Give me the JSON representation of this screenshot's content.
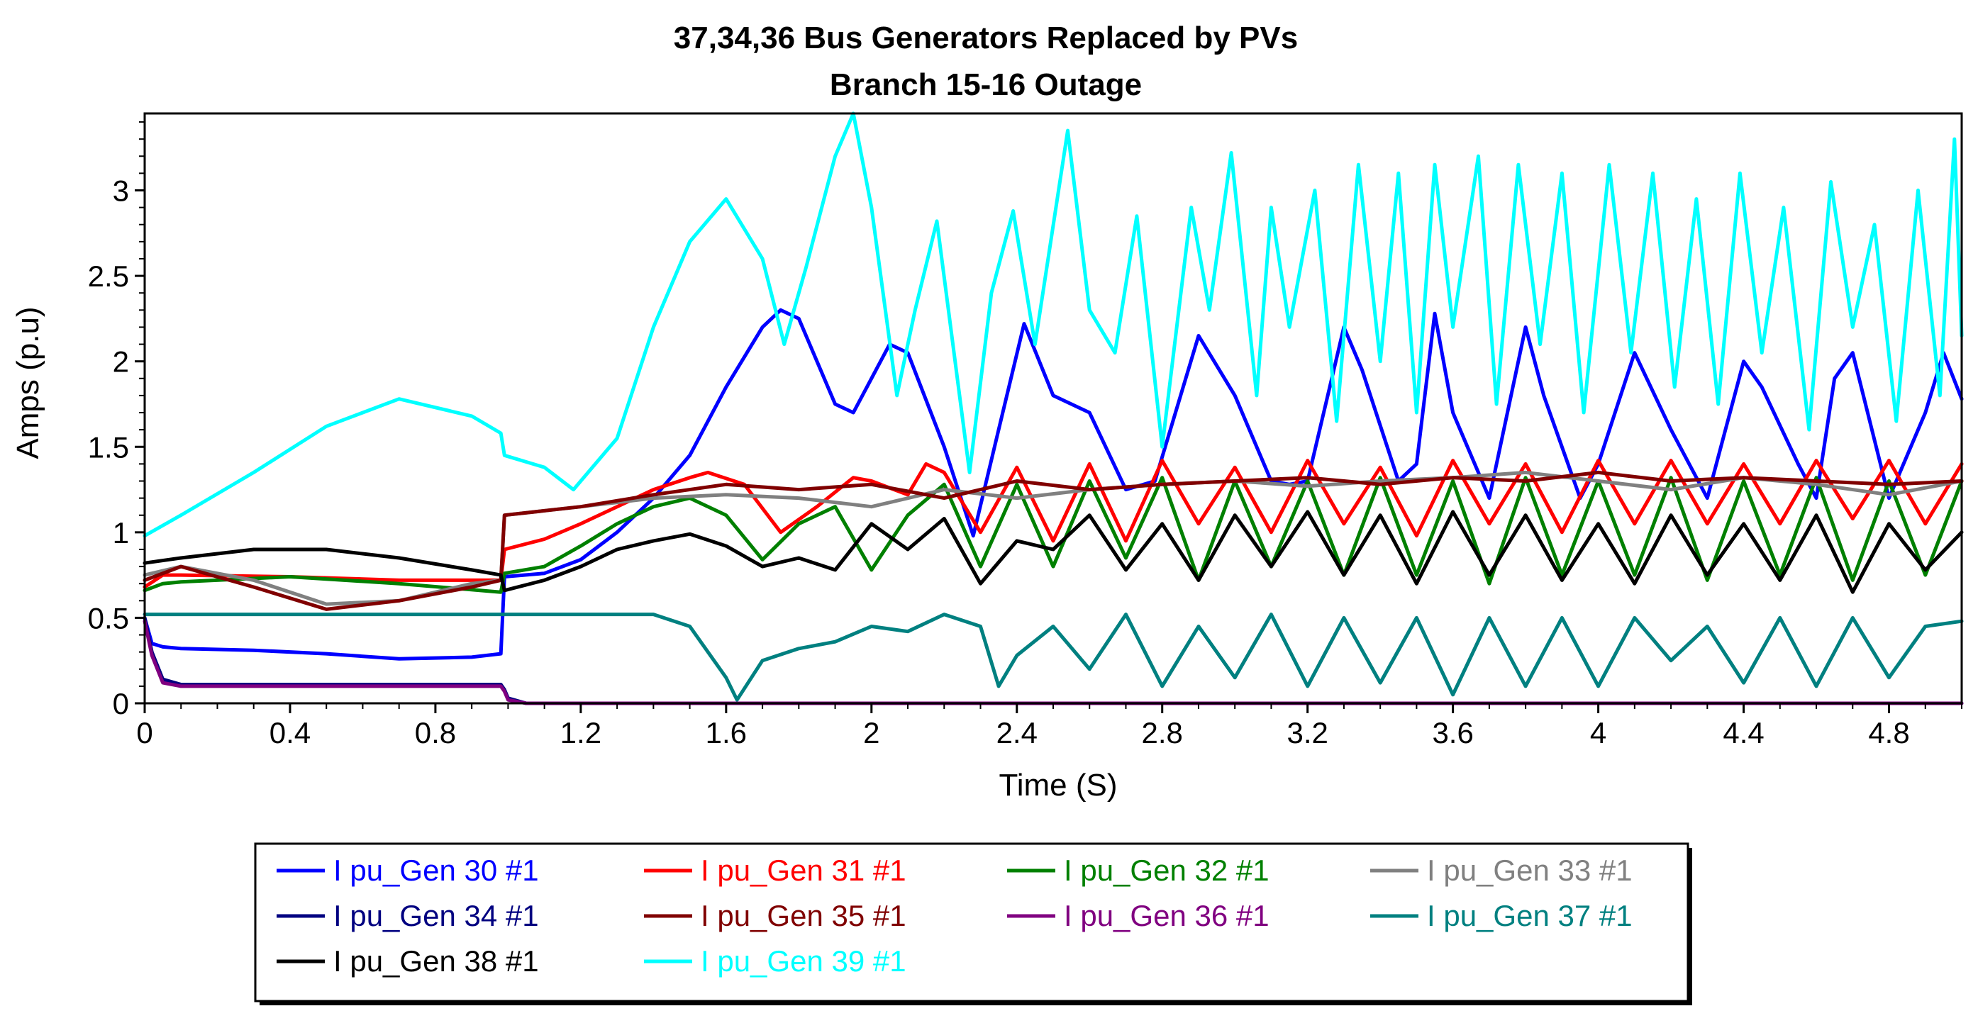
{
  "chart_data": {
    "type": "line",
    "title": "37,34,36  Bus Generators Replaced by PVs",
    "subtitle": "Branch 15-16 Outage",
    "xlabel": "Time (S)",
    "ylabel": "Amps (p.u)",
    "xlim": [
      0,
      5.0
    ],
    "ylim": [
      0,
      3.45
    ],
    "xticks": [
      0,
      0.4,
      0.8,
      1.2,
      1.6,
      2,
      2.4,
      2.8,
      3.2,
      3.6,
      4,
      4.4,
      4.8
    ],
    "xtick_labels": [
      "0",
      "0.4",
      "0.8",
      "1.2",
      "1.6",
      "2",
      "2.4",
      "2.8",
      "3.2",
      "3.6",
      "4",
      "4.4",
      "4.8"
    ],
    "yticks": [
      0,
      0.5,
      1,
      1.5,
      2,
      2.5,
      3
    ],
    "ytick_labels": [
      "0",
      "0.5",
      "1",
      "1.5",
      "2",
      "2.5",
      "3"
    ],
    "grid": false,
    "legend_position": "bottom",
    "series": [
      {
        "name": "I pu_Gen 30 #1",
        "color": "#0000ff",
        "x": [
          0,
          0.02,
          0.05,
          0.1,
          0.3,
          0.5,
          0.7,
          0.9,
          0.98,
          0.99,
          1.1,
          1.2,
          1.3,
          1.4,
          1.5,
          1.6,
          1.7,
          1.75,
          1.8,
          1.9,
          1.95,
          2.0,
          2.05,
          2.1,
          2.2,
          2.28,
          2.35,
          2.42,
          2.5,
          2.6,
          2.7,
          2.78,
          2.9,
          3.0,
          3.1,
          3.15,
          3.2,
          3.3,
          3.35,
          3.45,
          3.5,
          3.55,
          3.6,
          3.7,
          3.8,
          3.85,
          3.95,
          4.0,
          4.1,
          4.2,
          4.3,
          4.35,
          4.4,
          4.45,
          4.55,
          4.6,
          4.65,
          4.7,
          4.8,
          4.9,
          4.95,
          5.0
        ],
        "y": [
          0.5,
          0.35,
          0.33,
          0.32,
          0.31,
          0.29,
          0.26,
          0.27,
          0.29,
          0.74,
          0.76,
          0.84,
          1.0,
          1.2,
          1.45,
          1.85,
          2.2,
          2.3,
          2.25,
          1.75,
          1.7,
          1.9,
          2.1,
          2.05,
          1.5,
          0.98,
          1.6,
          2.22,
          1.8,
          1.7,
          1.25,
          1.3,
          2.15,
          1.8,
          1.3,
          1.28,
          1.3,
          2.2,
          1.95,
          1.3,
          1.4,
          2.28,
          1.7,
          1.2,
          2.2,
          1.8,
          1.2,
          1.4,
          2.05,
          1.6,
          1.2,
          1.6,
          2.0,
          1.85,
          1.4,
          1.2,
          1.9,
          2.05,
          1.2,
          1.7,
          2.05,
          1.78
        ]
      },
      {
        "name": "I pu_Gen 31 #1",
        "color": "#ff0000",
        "x": [
          0,
          0.05,
          0.1,
          0.4,
          0.7,
          0.98,
          0.99,
          1.1,
          1.2,
          1.3,
          1.4,
          1.5,
          1.55,
          1.65,
          1.75,
          1.85,
          1.95,
          2.0,
          2.1,
          2.15,
          2.2,
          2.3,
          2.4,
          2.5,
          2.6,
          2.7,
          2.8,
          2.9,
          3.0,
          3.1,
          3.2,
          3.3,
          3.4,
          3.5,
          3.6,
          3.7,
          3.8,
          3.9,
          4.0,
          4.1,
          4.2,
          4.3,
          4.4,
          4.5,
          4.6,
          4.7,
          4.8,
          4.9,
          5.0
        ],
        "y": [
          0.68,
          0.75,
          0.75,
          0.74,
          0.72,
          0.72,
          0.9,
          0.96,
          1.05,
          1.15,
          1.25,
          1.32,
          1.35,
          1.28,
          1.0,
          1.15,
          1.32,
          1.3,
          1.22,
          1.4,
          1.35,
          1.0,
          1.38,
          0.95,
          1.4,
          0.95,
          1.42,
          1.05,
          1.38,
          1.0,
          1.42,
          1.05,
          1.38,
          0.98,
          1.42,
          1.05,
          1.4,
          1.0,
          1.42,
          1.05,
          1.42,
          1.05,
          1.4,
          1.05,
          1.42,
          1.08,
          1.42,
          1.05,
          1.4
        ]
      },
      {
        "name": "I pu_Gen 32 #1",
        "color": "#008000",
        "x": [
          0,
          0.05,
          0.1,
          0.4,
          0.7,
          0.98,
          0.99,
          1.1,
          1.2,
          1.3,
          1.4,
          1.5,
          1.6,
          1.7,
          1.8,
          1.9,
          2.0,
          2.1,
          2.2,
          2.3,
          2.4,
          2.5,
          2.6,
          2.7,
          2.8,
          2.9,
          3.0,
          3.1,
          3.2,
          3.3,
          3.4,
          3.5,
          3.6,
          3.7,
          3.8,
          3.9,
          4.0,
          4.1,
          4.2,
          4.3,
          4.4,
          4.5,
          4.6,
          4.7,
          4.8,
          4.9,
          5.0
        ],
        "y": [
          0.66,
          0.7,
          0.71,
          0.74,
          0.7,
          0.65,
          0.76,
          0.8,
          0.92,
          1.05,
          1.15,
          1.2,
          1.1,
          0.84,
          1.05,
          1.15,
          0.78,
          1.1,
          1.28,
          0.8,
          1.28,
          0.8,
          1.3,
          0.85,
          1.32,
          0.72,
          1.3,
          0.8,
          1.3,
          0.75,
          1.32,
          0.75,
          1.3,
          0.7,
          1.32,
          0.75,
          1.3,
          0.75,
          1.32,
          0.72,
          1.3,
          0.75,
          1.32,
          0.72,
          1.3,
          0.75,
          1.3
        ]
      },
      {
        "name": "I pu_Gen 33 #1",
        "color": "#808080",
        "x": [
          0,
          0.1,
          0.3,
          0.5,
          0.7,
          0.9,
          0.98,
          0.99,
          1.2,
          1.4,
          1.6,
          1.8,
          2.0,
          2.2,
          2.4,
          2.6,
          2.8,
          3.0,
          3.2,
          3.4,
          3.6,
          3.8,
          4.0,
          4.2,
          4.4,
          4.6,
          4.8,
          5.0
        ],
        "y": [
          0.75,
          0.8,
          0.72,
          0.58,
          0.6,
          0.7,
          0.72,
          1.1,
          1.15,
          1.2,
          1.22,
          1.2,
          1.15,
          1.25,
          1.2,
          1.25,
          1.28,
          1.3,
          1.27,
          1.3,
          1.32,
          1.35,
          1.3,
          1.25,
          1.32,
          1.28,
          1.22,
          1.3
        ]
      },
      {
        "name": "I pu_Gen 34 #1",
        "color": "#000080",
        "x": [
          0,
          0.02,
          0.05,
          0.1,
          0.5,
          0.98,
          0.99,
          1.0,
          1.05,
          5.0
        ],
        "y": [
          0.5,
          0.3,
          0.14,
          0.11,
          0.11,
          0.11,
          0.08,
          0.03,
          0.0,
          0.0
        ]
      },
      {
        "name": "I pu_Gen 35 #1",
        "color": "#800000",
        "x": [
          0,
          0.1,
          0.3,
          0.5,
          0.7,
          0.9,
          0.98,
          0.99,
          1.2,
          1.4,
          1.6,
          1.8,
          2.0,
          2.2,
          2.4,
          2.6,
          2.8,
          3.0,
          3.2,
          3.4,
          3.6,
          3.8,
          4.0,
          4.2,
          4.4,
          4.6,
          4.8,
          5.0
        ],
        "y": [
          0.72,
          0.8,
          0.68,
          0.55,
          0.6,
          0.68,
          0.72,
          1.1,
          1.15,
          1.22,
          1.28,
          1.25,
          1.28,
          1.2,
          1.3,
          1.25,
          1.28,
          1.3,
          1.32,
          1.28,
          1.32,
          1.3,
          1.35,
          1.3,
          1.32,
          1.3,
          1.28,
          1.3
        ]
      },
      {
        "name": "I pu_Gen 36 #1",
        "color": "#800080",
        "x": [
          0,
          0.02,
          0.05,
          0.1,
          0.5,
          0.98,
          0.99,
          1.0,
          1.05,
          5.0
        ],
        "y": [
          0.48,
          0.28,
          0.12,
          0.1,
          0.1,
          0.1,
          0.07,
          0.02,
          0.0,
          0.0
        ]
      },
      {
        "name": "I pu_Gen 37 #1",
        "color": "#008080",
        "x": [
          0,
          0.5,
          1.0,
          1.4,
          1.5,
          1.6,
          1.63,
          1.7,
          1.8,
          1.9,
          2.0,
          2.1,
          2.2,
          2.3,
          2.35,
          2.4,
          2.5,
          2.6,
          2.7,
          2.8,
          2.9,
          3.0,
          3.1,
          3.2,
          3.3,
          3.4,
          3.5,
          3.6,
          3.7,
          3.8,
          3.9,
          4.0,
          4.1,
          4.2,
          4.3,
          4.4,
          4.5,
          4.6,
          4.7,
          4.8,
          4.9,
          5.0
        ],
        "y": [
          0.52,
          0.52,
          0.52,
          0.52,
          0.45,
          0.15,
          0.02,
          0.25,
          0.32,
          0.36,
          0.45,
          0.42,
          0.52,
          0.45,
          0.1,
          0.28,
          0.45,
          0.2,
          0.52,
          0.1,
          0.45,
          0.15,
          0.52,
          0.1,
          0.5,
          0.12,
          0.5,
          0.05,
          0.5,
          0.1,
          0.5,
          0.1,
          0.5,
          0.25,
          0.45,
          0.12,
          0.5,
          0.1,
          0.5,
          0.15,
          0.45,
          0.48
        ]
      },
      {
        "name": "I pu_Gen 38 #1",
        "color": "#000000",
        "x": [
          0,
          0.1,
          0.3,
          0.5,
          0.7,
          0.9,
          0.98,
          0.99,
          1.1,
          1.2,
          1.3,
          1.4,
          1.5,
          1.6,
          1.7,
          1.8,
          1.9,
          2.0,
          2.1,
          2.2,
          2.3,
          2.4,
          2.5,
          2.6,
          2.7,
          2.8,
          2.9,
          3.0,
          3.1,
          3.2,
          3.3,
          3.4,
          3.5,
          3.6,
          3.7,
          3.8,
          3.9,
          4.0,
          4.1,
          4.2,
          4.3,
          4.4,
          4.5,
          4.6,
          4.7,
          4.8,
          4.9,
          5.0
        ],
        "y": [
          0.82,
          0.85,
          0.9,
          0.9,
          0.85,
          0.78,
          0.75,
          0.66,
          0.72,
          0.8,
          0.9,
          0.95,
          0.99,
          0.92,
          0.8,
          0.85,
          0.78,
          1.05,
          0.9,
          1.08,
          0.7,
          0.95,
          0.9,
          1.1,
          0.78,
          1.05,
          0.72,
          1.1,
          0.8,
          1.12,
          0.75,
          1.1,
          0.7,
          1.12,
          0.75,
          1.1,
          0.72,
          1.05,
          0.7,
          1.1,
          0.75,
          1.05,
          0.72,
          1.1,
          0.65,
          1.05,
          0.78,
          1.0
        ]
      },
      {
        "name": "I pu_Gen 39 #1",
        "color": "#00ffff",
        "x": [
          0,
          0.1,
          0.3,
          0.5,
          0.7,
          0.9,
          0.98,
          0.99,
          1.1,
          1.18,
          1.3,
          1.4,
          1.5,
          1.6,
          1.7,
          1.76,
          1.82,
          1.9,
          1.95,
          2.0,
          2.07,
          2.12,
          2.18,
          2.27,
          2.33,
          2.39,
          2.45,
          2.54,
          2.6,
          2.67,
          2.73,
          2.8,
          2.88,
          2.93,
          2.99,
          3.06,
          3.1,
          3.15,
          3.22,
          3.28,
          3.34,
          3.4,
          3.45,
          3.5,
          3.55,
          3.6,
          3.67,
          3.72,
          3.78,
          3.84,
          3.9,
          3.96,
          4.03,
          4.09,
          4.15,
          4.21,
          4.27,
          4.33,
          4.39,
          4.45,
          4.51,
          4.58,
          4.64,
          4.7,
          4.76,
          4.82,
          4.88,
          4.94,
          4.98,
          5.0
        ],
        "y": [
          0.98,
          1.1,
          1.35,
          1.62,
          1.78,
          1.68,
          1.58,
          1.45,
          1.38,
          1.25,
          1.55,
          2.2,
          2.7,
          2.95,
          2.6,
          2.1,
          2.55,
          3.2,
          3.45,
          2.9,
          1.8,
          2.3,
          2.82,
          1.35,
          2.4,
          2.88,
          2.1,
          3.35,
          2.3,
          2.05,
          2.85,
          1.5,
          2.9,
          2.3,
          3.22,
          1.8,
          2.9,
          2.2,
          3.0,
          1.65,
          3.15,
          2.0,
          3.1,
          1.7,
          3.15,
          2.2,
          3.2,
          1.75,
          3.15,
          2.1,
          3.1,
          1.7,
          3.15,
          2.05,
          3.1,
          1.85,
          2.95,
          1.75,
          3.1,
          2.05,
          2.9,
          1.6,
          3.05,
          2.2,
          2.8,
          1.65,
          3.0,
          1.8,
          3.3,
          2.15
        ]
      }
    ]
  }
}
